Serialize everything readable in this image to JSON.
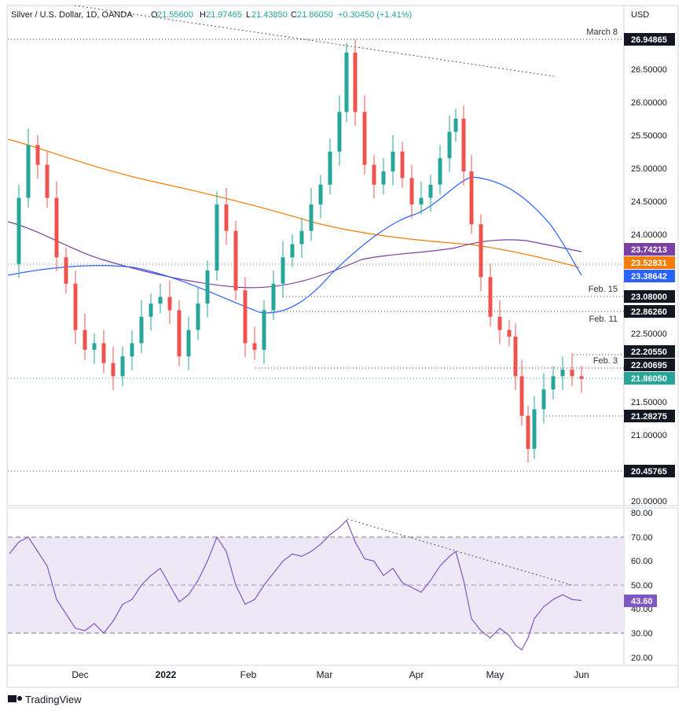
{
  "header": {
    "symbol_title": "Silver / U.S. Dollar, 1D, OANDA",
    "open_label": "O",
    "open_value": "21.55600",
    "high_label": "H",
    "high_value": "21.97465",
    "low_label": "L",
    "low_value": "21.43850",
    "close_label": "C",
    "close_value": "21.86050",
    "change": "+0.30450 (+1.41%)"
  },
  "price_axis": {
    "currency": "USD",
    "ticks": [
      "26.50000",
      "26.00000",
      "25.50000",
      "25.00000",
      "24.50000",
      "24.00000",
      "22.50000",
      "21.50000",
      "21.00000",
      "20.00000"
    ]
  },
  "time_axis": {
    "labels": [
      "Dec",
      "2022",
      "Feb",
      "Mar",
      "Apr",
      "May",
      "Jun"
    ]
  },
  "rsi_axis": {
    "ticks": [
      "80.00",
      "70.00",
      "60.00",
      "50.00",
      "40.00",
      "30.00",
      "20.00"
    ],
    "current": "43.60"
  },
  "branding": {
    "logo_text": "TradingView"
  },
  "colors": {
    "bull": "#26a69a",
    "bear": "#ef5350",
    "ma_fast": "#2962ff",
    "ma_mid": "#7b3fa6",
    "ma_slow": "#f57c00",
    "rsi_line": "#7e57c2",
    "rsi_band": "#ede7f6",
    "last_price": "#26a69a"
  },
  "chart_data": {
    "type": "candlestick",
    "title": "Silver / U.S. Dollar, 1D, OANDA",
    "ylim": [
      19.9,
      27.6
    ],
    "ma_levels": [
      {
        "value": "23.74213",
        "color": "#7b3fa6"
      },
      {
        "value": "23.52831",
        "color": "#f57c00"
      },
      {
        "value": "23.38642",
        "color": "#2962ff"
      }
    ],
    "level_lines": [
      {
        "value": "26.94865",
        "label": "March 8"
      },
      {
        "value": "23.08000",
        "label": "Feb. 15"
      },
      {
        "value": "22.86260",
        "label": "Feb. 11"
      },
      {
        "value": "22.20550",
        "label": ""
      },
      {
        "value": "22.00695",
        "label": "Feb. 3"
      },
      {
        "value": "21.28275",
        "label": ""
      },
      {
        "value": "20.45765",
        "label": ""
      }
    ],
    "last_price": "21.86050",
    "price_series": [
      {
        "x": 12,
        "y": 23.6
      },
      {
        "x": 24,
        "y": 24.6
      },
      {
        "x": 36,
        "y": 25.4
      },
      {
        "x": 48,
        "y": 25.1
      },
      {
        "x": 60,
        "y": 24.6
      },
      {
        "x": 72,
        "y": 23.7
      },
      {
        "x": 84,
        "y": 23.3
      },
      {
        "x": 96,
        "y": 22.6
      },
      {
        "x": 108,
        "y": 22.3
      },
      {
        "x": 120,
        "y": 22.4
      },
      {
        "x": 132,
        "y": 22.1
      },
      {
        "x": 144,
        "y": 21.9
      },
      {
        "x": 156,
        "y": 22.2
      },
      {
        "x": 168,
        "y": 22.4
      },
      {
        "x": 180,
        "y": 22.8
      },
      {
        "x": 192,
        "y": 23.0
      },
      {
        "x": 204,
        "y": 23.1
      },
      {
        "x": 216,
        "y": 22.9
      },
      {
        "x": 228,
        "y": 22.2
      },
      {
        "x": 240,
        "y": 22.6
      },
      {
        "x": 252,
        "y": 23.0
      },
      {
        "x": 264,
        "y": 23.5
      },
      {
        "x": 276,
        "y": 24.5
      },
      {
        "x": 288,
        "y": 24.1
      },
      {
        "x": 300,
        "y": 23.2
      },
      {
        "x": 312,
        "y": 22.4
      },
      {
        "x": 324,
        "y": 22.3
      },
      {
        "x": 336,
        "y": 22.9
      },
      {
        "x": 348,
        "y": 23.3
      },
      {
        "x": 360,
        "y": 23.7
      },
      {
        "x": 372,
        "y": 23.9
      },
      {
        "x": 384,
        "y": 24.1
      },
      {
        "x": 396,
        "y": 24.5
      },
      {
        "x": 408,
        "y": 24.8
      },
      {
        "x": 420,
        "y": 25.3
      },
      {
        "x": 432,
        "y": 25.9
      },
      {
        "x": 441,
        "y": 26.8
      },
      {
        "x": 452,
        "y": 25.9
      },
      {
        "x": 464,
        "y": 25.1
      },
      {
        "x": 476,
        "y": 24.8
      },
      {
        "x": 488,
        "y": 25.0
      },
      {
        "x": 500,
        "y": 25.3
      },
      {
        "x": 512,
        "y": 24.9
      },
      {
        "x": 524,
        "y": 24.5
      },
      {
        "x": 536,
        "y": 24.6
      },
      {
        "x": 548,
        "y": 24.8
      },
      {
        "x": 560,
        "y": 25.2
      },
      {
        "x": 572,
        "y": 25.6
      },
      {
        "x": 580,
        "y": 25.8
      },
      {
        "x": 590,
        "y": 25.0
      },
      {
        "x": 600,
        "y": 24.2
      },
      {
        "x": 612,
        "y": 23.4
      },
      {
        "x": 624,
        "y": 22.8
      },
      {
        "x": 636,
        "y": 22.6
      },
      {
        "x": 648,
        "y": 22.5
      },
      {
        "x": 656,
        "y": 21.9
      },
      {
        "x": 664,
        "y": 21.3
      },
      {
        "x": 672,
        "y": 20.8
      },
      {
        "x": 680,
        "y": 21.4
      },
      {
        "x": 692,
        "y": 21.7
      },
      {
        "x": 704,
        "y": 21.9
      },
      {
        "x": 716,
        "y": 22.0
      },
      {
        "x": 728,
        "y": 21.9
      },
      {
        "x": 740,
        "y": 21.86
      }
    ],
    "rsi_series": [
      {
        "x": 12,
        "y": 63
      },
      {
        "x": 24,
        "y": 68
      },
      {
        "x": 36,
        "y": 70
      },
      {
        "x": 48,
        "y": 64
      },
      {
        "x": 60,
        "y": 58
      },
      {
        "x": 72,
        "y": 44
      },
      {
        "x": 84,
        "y": 38
      },
      {
        "x": 96,
        "y": 32
      },
      {
        "x": 108,
        "y": 31
      },
      {
        "x": 120,
        "y": 34
      },
      {
        "x": 132,
        "y": 30
      },
      {
        "x": 144,
        "y": 35
      },
      {
        "x": 156,
        "y": 42
      },
      {
        "x": 168,
        "y": 44
      },
      {
        "x": 180,
        "y": 50
      },
      {
        "x": 192,
        "y": 54
      },
      {
        "x": 204,
        "y": 57
      },
      {
        "x": 216,
        "y": 50
      },
      {
        "x": 228,
        "y": 43
      },
      {
        "x": 240,
        "y": 46
      },
      {
        "x": 252,
        "y": 52
      },
      {
        "x": 264,
        "y": 60
      },
      {
        "x": 276,
        "y": 70
      },
      {
        "x": 288,
        "y": 64
      },
      {
        "x": 300,
        "y": 50
      },
      {
        "x": 312,
        "y": 42
      },
      {
        "x": 324,
        "y": 44
      },
      {
        "x": 336,
        "y": 50
      },
      {
        "x": 348,
        "y": 55
      },
      {
        "x": 360,
        "y": 60
      },
      {
        "x": 372,
        "y": 63
      },
      {
        "x": 384,
        "y": 62
      },
      {
        "x": 396,
        "y": 64
      },
      {
        "x": 408,
        "y": 67
      },
      {
        "x": 420,
        "y": 71
      },
      {
        "x": 432,
        "y": 74
      },
      {
        "x": 441,
        "y": 77
      },
      {
        "x": 452,
        "y": 68
      },
      {
        "x": 464,
        "y": 61
      },
      {
        "x": 476,
        "y": 60
      },
      {
        "x": 488,
        "y": 54
      },
      {
        "x": 500,
        "y": 57
      },
      {
        "x": 512,
        "y": 51
      },
      {
        "x": 524,
        "y": 49
      },
      {
        "x": 536,
        "y": 47
      },
      {
        "x": 548,
        "y": 52
      },
      {
        "x": 560,
        "y": 58
      },
      {
        "x": 572,
        "y": 62
      },
      {
        "x": 580,
        "y": 64
      },
      {
        "x": 590,
        "y": 52
      },
      {
        "x": 600,
        "y": 36
      },
      {
        "x": 612,
        "y": 31
      },
      {
        "x": 624,
        "y": 28
      },
      {
        "x": 636,
        "y": 32
      },
      {
        "x": 648,
        "y": 29
      },
      {
        "x": 656,
        "y": 25
      },
      {
        "x": 664,
        "y": 23
      },
      {
        "x": 672,
        "y": 28
      },
      {
        "x": 680,
        "y": 36
      },
      {
        "x": 692,
        "y": 41
      },
      {
        "x": 704,
        "y": 44
      },
      {
        "x": 716,
        "y": 46
      },
      {
        "x": 728,
        "y": 44
      },
      {
        "x": 740,
        "y": 43.6
      }
    ]
  }
}
